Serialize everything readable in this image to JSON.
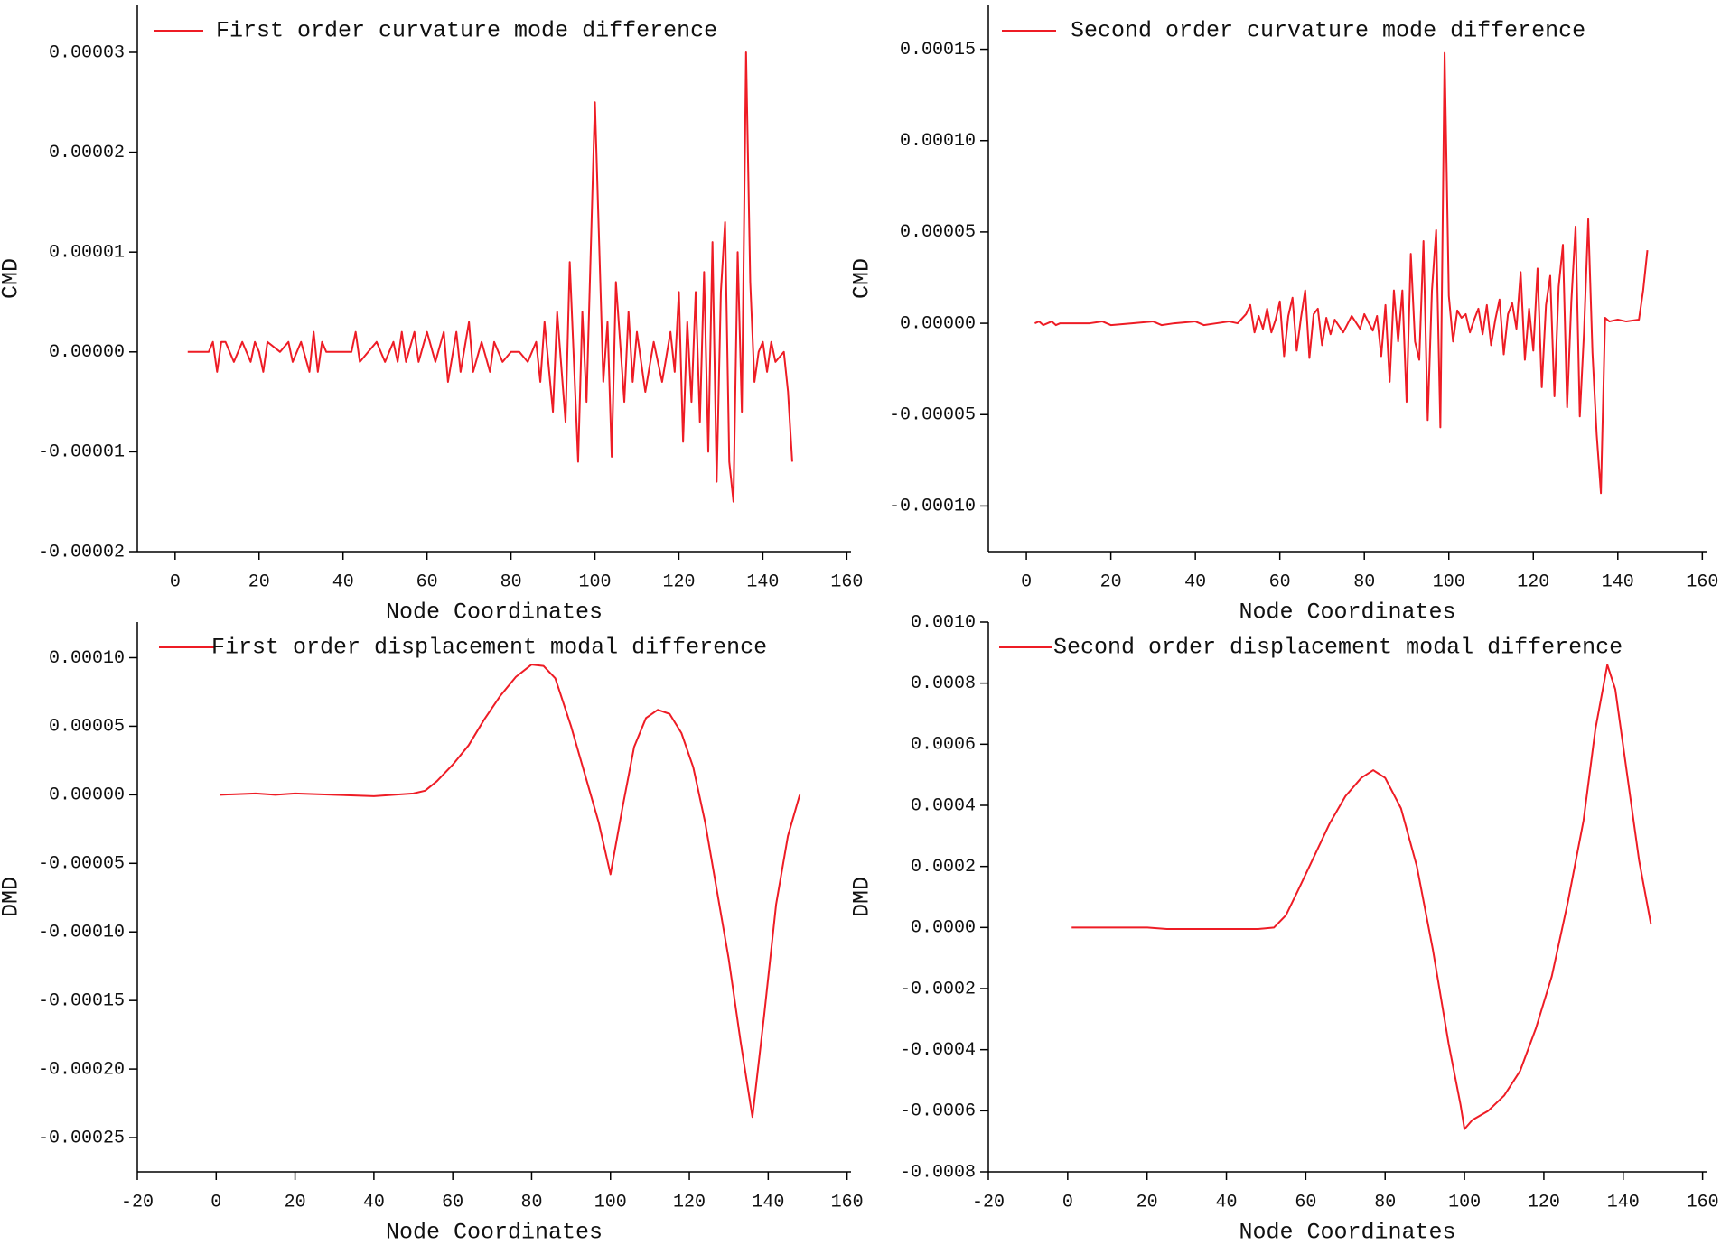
{
  "chart_data": [
    {
      "type": "line",
      "xlabel": "Node Coordinates",
      "ylabel": "CMD",
      "x": [
        3,
        8,
        9,
        10,
        11,
        12,
        14,
        16,
        18,
        19,
        20,
        21,
        22,
        25,
        27,
        28,
        30,
        32,
        33,
        34,
        35,
        36,
        40,
        42,
        43,
        44,
        46,
        48,
        50,
        52,
        53,
        54,
        55,
        57,
        58,
        60,
        62,
        64,
        65,
        67,
        68,
        70,
        71,
        73,
        75,
        76,
        78,
        80,
        82,
        84,
        86,
        87,
        88,
        90,
        91,
        93,
        94,
        96,
        97,
        98,
        100,
        102,
        103,
        104,
        105,
        107,
        108,
        109,
        110,
        112,
        114,
        116,
        118,
        119,
        120,
        121,
        122,
        123,
        124,
        125,
        126,
        127,
        128,
        129,
        130,
        131,
        132,
        133,
        134,
        135,
        136,
        137,
        138,
        139,
        140,
        141,
        142,
        143,
        145,
        146,
        147
      ],
      "series": [
        {
          "name": "First order curvature mode difference",
          "color": "#ee1c25",
          "values": [
            0,
            0,
            1e-06,
            -2e-06,
            1e-06,
            1e-06,
            -1e-06,
            1e-06,
            -1e-06,
            1e-06,
            0,
            -2e-06,
            1e-06,
            0,
            1e-06,
            -1e-06,
            1e-06,
            -2e-06,
            2e-06,
            -2e-06,
            1e-06,
            0,
            0,
            0,
            2e-06,
            -1e-06,
            0,
            1e-06,
            -1e-06,
            1e-06,
            -1e-06,
            2e-06,
            -1e-06,
            2e-06,
            -1e-06,
            2e-06,
            -1e-06,
            2e-06,
            -3e-06,
            2e-06,
            -2e-06,
            3e-06,
            -2e-06,
            1e-06,
            -2e-06,
            1e-06,
            -1e-06,
            0,
            0,
            -1e-06,
            1e-06,
            -3e-06,
            3e-06,
            -6e-06,
            4e-06,
            -7e-06,
            9e-06,
            -1.1e-05,
            4e-06,
            -5e-06,
            2.5e-05,
            -3e-06,
            3e-06,
            -1.05e-05,
            7e-06,
            -5e-06,
            4e-06,
            -3e-06,
            2e-06,
            -4e-06,
            1e-06,
            -3e-06,
            2e-06,
            -2e-06,
            6e-06,
            -9e-06,
            3e-06,
            -5e-06,
            6e-06,
            -7e-06,
            8e-06,
            -1e-05,
            1.1e-05,
            -1.3e-05,
            6e-06,
            1.3e-05,
            -1.1e-05,
            -1.5e-05,
            1e-05,
            -6e-06,
            3e-05,
            7e-06,
            -3e-06,
            0,
            1e-06,
            -2e-06,
            1e-06,
            -1e-06,
            0,
            -4e-06,
            -1.1e-05
          ]
        }
      ],
      "xlim": [
        -9,
        161
      ],
      "ylim": [
        -2e-05,
        3.47e-05
      ],
      "xticks": [
        0,
        20,
        40,
        60,
        80,
        100,
        120,
        140,
        160
      ],
      "yticks": [
        {
          "value": -2e-05,
          "label": "-0.00002"
        },
        {
          "value": -1e-05,
          "label": "-0.00001"
        },
        {
          "value": 0,
          "label": "0.00000"
        },
        {
          "value": 1e-05,
          "label": "0.00001"
        },
        {
          "value": 2e-05,
          "label": "0.00002"
        },
        {
          "value": 3e-05,
          "label": "0.00003"
        }
      ]
    },
    {
      "type": "line",
      "xlabel": "Node Coordinates",
      "ylabel": "CMD",
      "x": [
        2,
        3,
        4,
        6,
        7,
        8,
        10,
        15,
        18,
        20,
        25,
        30,
        32,
        35,
        40,
        42,
        45,
        48,
        50,
        52,
        53,
        54,
        55,
        56,
        57,
        58,
        59,
        60,
        61,
        62,
        63,
        64,
        65,
        66,
        67,
        68,
        69,
        70,
        71,
        72,
        73,
        75,
        77,
        79,
        80,
        82,
        83,
        84,
        85,
        86,
        87,
        88,
        89,
        90,
        91,
        92,
        93,
        94,
        95,
        96,
        97,
        98,
        99,
        100,
        101,
        102,
        103,
        104,
        105,
        106,
        107,
        108,
        109,
        110,
        111,
        112,
        113,
        114,
        115,
        116,
        117,
        118,
        119,
        120,
        121,
        122,
        123,
        124,
        125,
        126,
        127,
        128,
        129,
        130,
        131,
        132,
        133,
        134,
        135,
        136,
        137,
        138,
        140,
        142,
        145,
        146,
        147
      ],
      "series": [
        {
          "name": "Second order curvature mode difference",
          "color": "#ee1c25",
          "values": [
            0,
            1e-06,
            -1e-06,
            1e-06,
            -1e-06,
            0,
            0,
            0,
            1e-06,
            -1e-06,
            0,
            1e-06,
            -1e-06,
            0,
            1e-06,
            -1e-06,
            0,
            1e-06,
            0,
            5e-06,
            1e-05,
            -5e-06,
            4e-06,
            -3e-06,
            8e-06,
            -5e-06,
            2e-06,
            1.2e-05,
            -1.8e-05,
            4e-06,
            1.4e-05,
            -1.5e-05,
            3e-06,
            1.8e-05,
            -1.9e-05,
            5e-06,
            8e-06,
            -1.2e-05,
            3e-06,
            -6e-06,
            2e-06,
            -5e-06,
            4e-06,
            -3e-06,
            5e-06,
            -4e-06,
            4e-06,
            -1.8e-05,
            1e-05,
            -3.2e-05,
            1.8e-05,
            -1e-05,
            1.8e-05,
            -4.3e-05,
            3.8e-05,
            -1e-05,
            -2e-05,
            4.5e-05,
            -5.3e-05,
            1.8e-05,
            5.1e-05,
            -5.7e-05,
            0.000148,
            1.5e-05,
            -1e-05,
            7e-06,
            3e-06,
            5e-06,
            -5e-06,
            2e-06,
            8e-06,
            -6e-06,
            1e-05,
            -1.2e-05,
            2e-06,
            1.3e-05,
            -1.7e-05,
            5e-06,
            1.1e-05,
            -3e-06,
            2.8e-05,
            -2e-05,
            8e-06,
            -1.5e-05,
            3e-05,
            -3.5e-05,
            1e-05,
            2.6e-05,
            -4e-05,
            2e-05,
            4.3e-05,
            -4.6e-05,
            1.2e-05,
            5.3e-05,
            -5.1e-05,
            -5e-06,
            5.7e-05,
            -1.6e-05,
            -6.1e-05,
            -9.3e-05,
            3e-06,
            1e-06,
            2e-06,
            1e-06,
            2e-06,
            1.8e-05,
            4e-05
          ]
        }
      ],
      "xlim": [
        -9,
        161
      ],
      "ylim": [
        -0.000125,
        0.000174
      ],
      "xticks": [
        0,
        20,
        40,
        60,
        80,
        100,
        120,
        140,
        160
      ],
      "yticks": [
        {
          "value": -0.0001,
          "label": "-0.00010"
        },
        {
          "value": -5e-05,
          "label": "-0.00005"
        },
        {
          "value": 0,
          "label": "0.00000"
        },
        {
          "value": 5e-05,
          "label": "0.00005"
        },
        {
          "value": 0.0001,
          "label": "0.00010"
        },
        {
          "value": 0.00015,
          "label": "0.00015"
        }
      ]
    },
    {
      "type": "line",
      "xlabel": "Node Coordinates",
      "ylabel": "DMD",
      "x": [
        1,
        10,
        15,
        20,
        30,
        40,
        50,
        53,
        56,
        60,
        64,
        68,
        72,
        76,
        80,
        83,
        86,
        90,
        94,
        97,
        100,
        103,
        106,
        109,
        112,
        115,
        118,
        121,
        124,
        127,
        130,
        133,
        136,
        139,
        142,
        145,
        148
      ],
      "series": [
        {
          "name": "First order displacement modal difference",
          "color": "#ee1c25",
          "values": [
            0,
            1e-06,
            0,
            1e-06,
            0,
            -1e-06,
            1e-06,
            3e-06,
            1e-05,
            2.2e-05,
            3.6e-05,
            5.5e-05,
            7.2e-05,
            8.6e-05,
            9.5e-05,
            9.4e-05,
            8.5e-05,
            5e-05,
            1e-05,
            -2e-05,
            -5.8e-05,
            -1e-05,
            3.5e-05,
            5.6e-05,
            6.2e-05,
            5.9e-05,
            4.5e-05,
            2e-05,
            -2e-05,
            -7e-05,
            -0.00012,
            -0.00018,
            -0.000235,
            -0.00016,
            -8e-05,
            -3e-05,
            0
          ]
        }
      ],
      "xlim": [
        -20,
        161
      ],
      "ylim": [
        -0.000275,
        0.000126
      ],
      "xticks": [
        -20,
        0,
        20,
        40,
        60,
        80,
        100,
        120,
        140,
        160
      ],
      "yticks": [
        {
          "value": -0.00025,
          "label": "-0.00025"
        },
        {
          "value": -0.0002,
          "label": "-0.00020"
        },
        {
          "value": -0.00015,
          "label": "-0.00015"
        },
        {
          "value": -0.0001,
          "label": "-0.00010"
        },
        {
          "value": -5e-05,
          "label": "-0.00005"
        },
        {
          "value": 0,
          "label": "0.00000"
        },
        {
          "value": 5e-05,
          "label": "0.00005"
        },
        {
          "value": 0.0001,
          "label": "0.00010"
        }
      ]
    },
    {
      "type": "line",
      "xlabel": "Node Coordinates",
      "ylabel": "DMD",
      "x": [
        1,
        10,
        20,
        25,
        30,
        40,
        48,
        52,
        55,
        58,
        62,
        66,
        70,
        74,
        77,
        80,
        84,
        88,
        92,
        96,
        99,
        100,
        102,
        106,
        110,
        114,
        118,
        122,
        126,
        130,
        133,
        136,
        138,
        141,
        144,
        147
      ],
      "series": [
        {
          "name": "Second order displacement modal difference",
          "color": "#ee1c25",
          "values": [
            0,
            0,
            0,
            -5e-06,
            -5e-06,
            -5e-06,
            -5e-06,
            0,
            4e-05,
            0.00012,
            0.00023,
            0.00034,
            0.00043,
            0.00049,
            0.000515,
            0.00049,
            0.00039,
            0.0002,
            -7e-05,
            -0.00038,
            -0.00058,
            -0.00066,
            -0.00063,
            -0.0006,
            -0.00055,
            -0.00047,
            -0.00033,
            -0.00016,
            8e-05,
            0.00035,
            0.00065,
            0.00086,
            0.00078,
            0.0005,
            0.00022,
            1e-05
          ]
        }
      ],
      "xlim": [
        -20,
        161
      ],
      "ylim": [
        -0.0008,
        0.001
      ],
      "xticks": [
        -20,
        0,
        20,
        40,
        60,
        80,
        100,
        120,
        140,
        160
      ],
      "yticks": [
        {
          "value": -0.0008,
          "label": "-0.0008"
        },
        {
          "value": -0.0006,
          "label": "-0.0006"
        },
        {
          "value": -0.0004,
          "label": "-0.0004"
        },
        {
          "value": -0.0002,
          "label": "-0.0002"
        },
        {
          "value": 0,
          "label": "0.0000"
        },
        {
          "value": 0.0002,
          "label": "0.0002"
        },
        {
          "value": 0.0004,
          "label": "0.0004"
        },
        {
          "value": 0.0006,
          "label": "0.0006"
        },
        {
          "value": 0.0008,
          "label": "0.0008"
        },
        {
          "value": 0.001,
          "label": "0.0010"
        }
      ]
    }
  ]
}
